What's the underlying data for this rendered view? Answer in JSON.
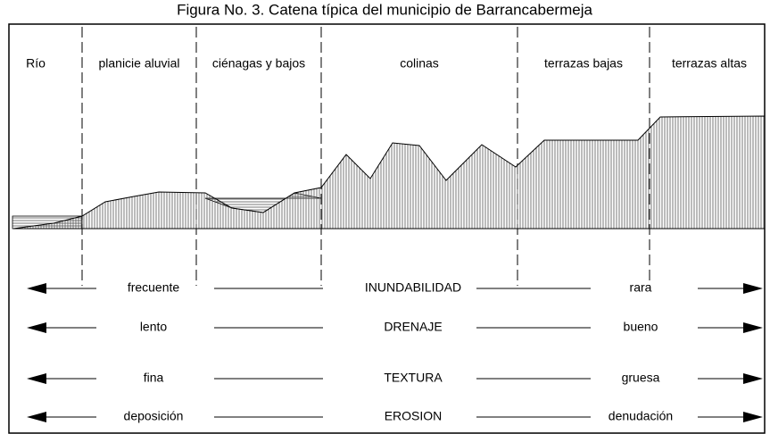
{
  "title": "Figura No. 3. Catena típica del municipio de Barrancabermeja",
  "zones": [
    "Río",
    "planicie aluvial",
    "ciénagas y bajos",
    "colinas",
    "terrazas bajas",
    "terrazas altas"
  ],
  "rows": [
    {
      "left": "frecuente",
      "center": "INUNDABILIDAD",
      "right": "rara"
    },
    {
      "left": "lento",
      "center": "DRENAJE",
      "right": "bueno"
    },
    {
      "left": "fina",
      "center": "TEXTURA",
      "right": "gruesa"
    },
    {
      "left": "deposición",
      "center": "EROSION",
      "right": "denudación"
    }
  ]
}
